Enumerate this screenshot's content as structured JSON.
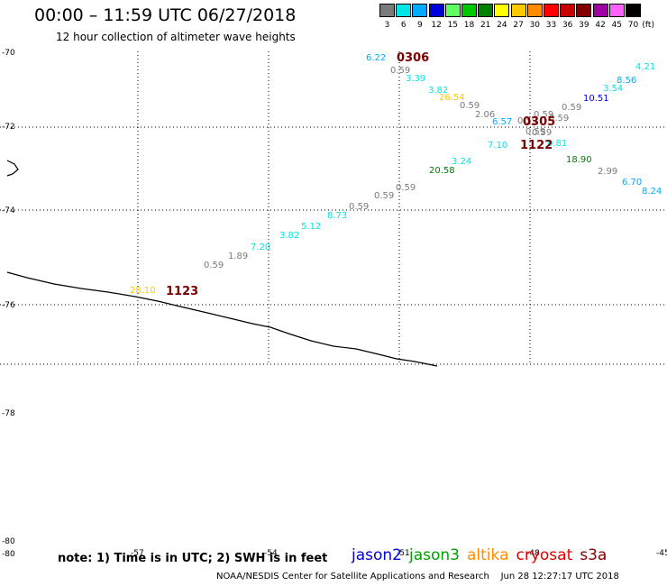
{
  "header": {
    "title": "00:00 – 11:59 UTC 06/27/2018",
    "subtitle": "12 hour collection of altimeter wave heights"
  },
  "scale": {
    "unit": "(ft)",
    "bins": [
      {
        "label": "3",
        "color": "#7a7a7a"
      },
      {
        "label": "6",
        "color": "#00e5e5"
      },
      {
        "label": "9",
        "color": "#00aaff"
      },
      {
        "label": "12",
        "color": "#0000d8"
      },
      {
        "label": "15",
        "color": "#60ff60"
      },
      {
        "label": "18",
        "color": "#00c800"
      },
      {
        "label": "21",
        "color": "#008000"
      },
      {
        "label": "24",
        "color": "#ffff00"
      },
      {
        "label": "27",
        "color": "#ffc800"
      },
      {
        "label": "30",
        "color": "#ff8c00"
      },
      {
        "label": "33",
        "color": "#ff0000"
      },
      {
        "label": "36",
        "color": "#c80000"
      },
      {
        "label": "39",
        "color": "#800000"
      },
      {
        "label": "42",
        "color": "#a000a0"
      },
      {
        "label": "45",
        "color": "#ff60ff"
      },
      {
        "label": "70",
        "color": "#000000"
      }
    ]
  },
  "map": {
    "lat_labels": [
      "-70",
      "-72",
      "-74",
      "-76",
      "-78",
      "-80",
      "-80"
    ],
    "lon_labels": [
      "-57",
      "-54",
      "-51",
      "-48",
      "-45"
    ],
    "time_labels": [
      "0306",
      "0305",
      "1122",
      "1123"
    ]
  },
  "chart_data": {
    "type": "scatter",
    "title": "00:00 – 11:59 UTC 06/27/2018",
    "subtitle": "12 hour collection of altimeter wave heights",
    "units": "ft",
    "points": [
      {
        "value": "6.22",
        "color": "#00aaff"
      },
      {
        "value": "0.59",
        "color": "#7a7a7a"
      },
      {
        "value": "3.39",
        "color": "#00e5e5"
      },
      {
        "value": "3.82",
        "color": "#00e5e5"
      },
      {
        "value": "26.54",
        "color": "#ffc800"
      },
      {
        "value": "0.59",
        "color": "#7a7a7a"
      },
      {
        "value": "2.06",
        "color": "#7a7a7a"
      },
      {
        "value": "6.57",
        "color": "#00aaff"
      },
      {
        "value": "0.59",
        "color": "#7a7a7a"
      },
      {
        "value": "0.59",
        "color": "#7a7a7a"
      },
      {
        "value": "0.59",
        "color": "#7a7a7a"
      },
      {
        "value": "4.21",
        "color": "#00e5e5"
      },
      {
        "value": "8.56",
        "color": "#00aaff"
      },
      {
        "value": "3.54",
        "color": "#00e5e5"
      },
      {
        "value": "10.51",
        "color": "#0000d8"
      },
      {
        "value": "0.59",
        "color": "#7a7a7a"
      },
      {
        "value": "0.59",
        "color": "#7a7a7a"
      },
      {
        "value": "0.59",
        "color": "#7a7a7a"
      },
      {
        "value": "7.10",
        "color": "#00e5e5"
      },
      {
        "value": "0.81",
        "color": "#00e5e5"
      },
      {
        "value": "18.90",
        "color": "#008000"
      },
      {
        "value": "2.99",
        "color": "#7a7a7a"
      },
      {
        "value": "6.70",
        "color": "#00aaff"
      },
      {
        "value": "8.24",
        "color": "#00aaff"
      },
      {
        "value": "3.24",
        "color": "#00e5e5"
      },
      {
        "value": "20.58",
        "color": "#008000"
      },
      {
        "value": "0.59",
        "color": "#7a7a7a"
      },
      {
        "value": "0.59",
        "color": "#7a7a7a"
      },
      {
        "value": "0.59",
        "color": "#7a7a7a"
      },
      {
        "value": "8.73",
        "color": "#00e5e5"
      },
      {
        "value": "5.12",
        "color": "#00e5e5"
      },
      {
        "value": "3.82",
        "color": "#00e5e5"
      },
      {
        "value": "7.20",
        "color": "#00e5e5"
      },
      {
        "value": "1.89",
        "color": "#7a7a7a"
      },
      {
        "value": "0.59",
        "color": "#7a7a7a"
      },
      {
        "value": "28.10",
        "color": "#ffc800"
      }
    ]
  },
  "footer": {
    "note": "note: 1) Time is in UTC; 2) SWH is in feet",
    "legend": [
      {
        "name": "jason2",
        "color": "#0000d8"
      },
      {
        "name": "jason3",
        "color": "#00a000"
      },
      {
        "name": "altika",
        "color": "#ff8c00"
      },
      {
        "name": "cryosat",
        "color": "#e00000"
      },
      {
        "name": "s3a",
        "color": "#800000"
      }
    ],
    "credit": "NOAA/NESDIS Center for Satellite Applications and Research    Jun 28 12:27:17 UTC 2018"
  }
}
